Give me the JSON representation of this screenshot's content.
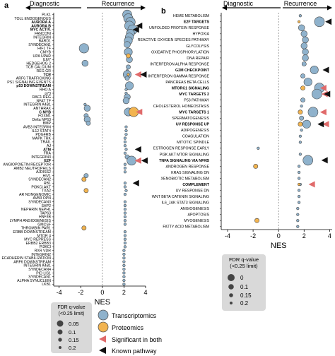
{
  "panels": {
    "a": {
      "label": "a",
      "left_header": "Diagnostic",
      "right_header": "Recurrence"
    },
    "b": {
      "label": "b",
      "left_header": "Diagnostic",
      "right_header": "Recurrence"
    }
  },
  "legend_a": {
    "title_line1": "FDR q-value",
    "title_line2": "(<0.25 limit)",
    "sizes": [
      "0.05",
      "0.1",
      "0.15",
      "0.2"
    ],
    "transcriptomics": "Transcriptomics",
    "proteomics": "Proteomics",
    "significant_both": "Significant in both",
    "known_pathway": "Known pathway"
  },
  "legend_b": {
    "title_line1": "FDR q-value",
    "title_line2": "(<0.25 limit)",
    "sizes": [
      "0",
      "0.1",
      "0.15",
      "0.2"
    ]
  },
  "colors": {
    "transcriptomics": "#8fb2cc",
    "proteomics": "#f2b450",
    "significant_both": "#e06a6a",
    "known_pathway": "#111111",
    "axis": "#000000",
    "legend_box": "#d9d9d9"
  },
  "chart_data": [
    {
      "type": "scatter",
      "panel": "a",
      "xlabel": "NES",
      "xlim": [
        -4.5,
        4
      ],
      "xticks": [
        -4,
        -2,
        0,
        2,
        4
      ],
      "grid": false,
      "categories": [
        "PLK1",
        "TOLL ENDOGENOUS",
        "AURORA A",
        "AURORA B",
        "MYC ACTIV.",
        "FANCONI",
        "INTEGRIN",
        "BARD1",
        "SYNDECAN1",
        "HIF1 TF",
        "CMYB",
        "UPA UPAR",
        "IL6/7",
        "HEDGEHOG 2",
        "TCR CALCIUM",
        "REG GR",
        "TCR",
        "ARF6 TRAFFICKING",
        "PS1 SIGNALING EVENTS",
        "p53 DOWNSTREAM",
        "RHO A",
        "p73",
        "RAC1 REG",
        "NFAT TF",
        "INTEGRIN A4B1",
        "ANTHRAX",
        "C MYB",
        "FOXM1",
        "Delta NP63",
        "BMP",
        "AVB3 INTEGRIN",
        "IL12 STAT4",
        "PDGFRB",
        "MAPK TRK",
        "TRAIL",
        "AJ",
        "ATM",
        "FRA",
        "INTEGRIN3",
        "E2F",
        "ANGIOPOIETIN RECEPTOR",
        "AMB2 NEUTROPHILS",
        "AJDISS2",
        "HIV1",
        "SYNDECAN2",
        "RB1",
        "PI3KCI AKT",
        "TXA2",
        "AR NONGENOMIC",
        "AVB3 OPN",
        "SYNDECAN3",
        "SHP2",
        "NEPHRIN NEPH1",
        "TAP63",
        "HNF3B",
        "LYMPH ANGIOGENESIS",
        "GMCSF",
        "THROMBIN PAR1",
        "ERBB DOWNSTREAM",
        "MTOR 4",
        "MYC REPRESS",
        "ERBB2 ERBB3",
        "PI3KCI",
        "RXR VDR",
        "INTEGRIN2",
        "ECADHERIN STABILIZATION",
        "ARF6 DOWNSTREAM",
        "INTEGRIN A4B1",
        "SYNDECAN4",
        "PID LIS1",
        "SYNDECAN1",
        "ALPHA SYNUCLEIN",
        "LKB1"
      ],
      "bold": [
        "AURORA A",
        "AURORA B",
        "MYC ACTIV.",
        "TCR",
        "p53 DOWNSTREAM",
        "C MYB",
        "ATM",
        "E2F"
      ],
      "series": [
        {
          "name": "Transcriptomics",
          "points": [
            {
              "c": 0,
              "x": 2.3,
              "q": 0.02
            },
            {
              "c": 1,
              "x": 2.4,
              "q": 0.02
            },
            {
              "c": 2,
              "x": 2.6,
              "q": 0.01
            },
            {
              "c": 3,
              "x": 2.5,
              "q": 0.01
            },
            {
              "c": 4,
              "x": 2.8,
              "q": 0.01
            },
            {
              "c": 5,
              "x": 2.6,
              "q": 0.05
            },
            {
              "c": 6,
              "x": 2.5,
              "q": 0.05
            },
            {
              "c": 7,
              "x": 2.4,
              "q": 0.05
            },
            {
              "c": 8,
              "x": 2.3,
              "q": 0.1
            },
            {
              "c": 9,
              "x": -1.7,
              "q": 0.01
            },
            {
              "c": 10,
              "x": 2.4,
              "q": 0.05
            },
            {
              "c": 12,
              "x": 2.5,
              "q": 0.1
            },
            {
              "c": 13,
              "x": -1.6,
              "q": 0.1
            },
            {
              "c": 14,
              "x": 2.4,
              "q": 0.15
            },
            {
              "c": 15,
              "x": 2.3,
              "q": 0.2
            },
            {
              "c": 16,
              "x": 2.3,
              "q": 0.05
            },
            {
              "c": 17,
              "x": 2.3,
              "q": 0.15
            },
            {
              "c": 19,
              "x": 2.5,
              "q": 0.05
            },
            {
              "c": 20,
              "x": 2.2,
              "q": 0.2
            },
            {
              "c": 21,
              "x": 2.2,
              "q": 0.2
            },
            {
              "c": 22,
              "x": 2.3,
              "q": 0.1
            },
            {
              "c": 23,
              "x": 2.2,
              "q": 0.1
            },
            {
              "c": 24,
              "x": -1.6,
              "q": 0.2
            },
            {
              "c": 25,
              "x": -1.4,
              "q": 0.1
            },
            {
              "c": 26,
              "x": 2.4,
              "q": 0.05
            },
            {
              "c": 27,
              "x": -1.5,
              "q": 0.15
            },
            {
              "c": 28,
              "x": -1.4,
              "q": 0.1
            },
            {
              "c": 29,
              "x": -1.3,
              "q": 0.15
            },
            {
              "c": 30,
              "x": 2.2,
              "q": 0.2
            },
            {
              "c": 31,
              "x": 2.2,
              "q": 0.2
            },
            {
              "c": 32,
              "x": 2.2,
              "q": 0.2
            },
            {
              "c": 33,
              "x": 2.1,
              "q": 0.2
            },
            {
              "c": 34,
              "x": 2.1,
              "q": 0.2
            },
            {
              "c": 35,
              "x": 2.1,
              "q": 0.2
            },
            {
              "c": 36,
              "x": 2.2,
              "q": 0.2
            },
            {
              "c": 37,
              "x": 2.1,
              "q": 0.2
            },
            {
              "c": 38,
              "x": 2.3,
              "q": 0.15
            },
            {
              "c": 39,
              "x": 2.7,
              "q": 0.02
            },
            {
              "c": 40,
              "x": 2.1,
              "q": 0.2
            },
            {
              "c": 41,
              "x": 2.1,
              "q": 0.2
            },
            {
              "c": 42,
              "x": 2.1,
              "q": 0.2
            },
            {
              "c": 43,
              "x": -1.5,
              "q": 0.15
            },
            {
              "c": 45,
              "x": 2.1,
              "q": 0.2
            },
            {
              "c": 46,
              "x": 2.1,
              "q": 0.2
            },
            {
              "c": 47,
              "x": 2.2,
              "q": 0.2
            },
            {
              "c": 48,
              "x": 2.1,
              "q": 0.2
            },
            {
              "c": 50,
              "x": 2.1,
              "q": 0.2
            },
            {
              "c": 51,
              "x": 2.1,
              "q": 0.2
            },
            {
              "c": 52,
              "x": 2.1,
              "q": 0.2
            },
            {
              "c": 53,
              "x": 2.1,
              "q": 0.2
            },
            {
              "c": 54,
              "x": 2.1,
              "q": 0.2
            },
            {
              "c": 55,
              "x": 2.1,
              "q": 0.2
            },
            {
              "c": 56,
              "x": 2.1,
              "q": 0.2
            },
            {
              "c": 58,
              "x": 2.1,
              "q": 0.2
            },
            {
              "c": 59,
              "x": 2.1,
              "q": 0.2
            },
            {
              "c": 60,
              "x": 2.1,
              "q": 0.2
            },
            {
              "c": 61,
              "x": 2.1,
              "q": 0.2
            },
            {
              "c": 62,
              "x": 2.1,
              "q": 0.2
            },
            {
              "c": 63,
              "x": 2.0,
              "q": 0.2
            },
            {
              "c": 64,
              "x": 2.0,
              "q": 0.2
            },
            {
              "c": 65,
              "x": 2.0,
              "q": 0.2
            },
            {
              "c": 66,
              "x": 2.0,
              "q": 0.2
            },
            {
              "c": 67,
              "x": 2.0,
              "q": 0.2
            },
            {
              "c": 68,
              "x": 2.0,
              "q": 0.2
            },
            {
              "c": 69,
              "x": 2.0,
              "q": 0.2
            },
            {
              "c": 70,
              "x": 2.0,
              "q": 0.2
            },
            {
              "c": 71,
              "x": 2.0,
              "q": 0.2
            },
            {
              "c": 72,
              "x": 2.0,
              "q": 0.2
            }
          ]
        },
        {
          "name": "Proteomics",
          "points": [
            {
              "c": 11,
              "x": 2.4,
              "q": 0.15
            },
            {
              "c": 16,
              "x": 2.4,
              "q": 0.2
            },
            {
              "c": 26,
              "x": 2.9,
              "q": 0.01
            },
            {
              "c": 44,
              "x": -1.7,
              "q": 0.15
            },
            {
              "c": 47,
              "x": -1.5,
              "q": 0.15
            },
            {
              "c": 57,
              "x": -1.7,
              "q": 0.15
            }
          ]
        },
        {
          "name": "Significant in both",
          "points": [
            {
              "c": 16,
              "x": 3.3
            },
            {
              "c": 26,
              "x": 3.4
            },
            {
              "c": 39,
              "x": 3.3
            }
          ]
        },
        {
          "name": "Known pathway",
          "points": [
            {
              "c": 3,
              "x": 3.4
            },
            {
              "c": 4,
              "x": 3.1
            },
            {
              "c": 16,
              "x": 3.8
            },
            {
              "c": 36,
              "x": 3.3
            },
            {
              "c": 39,
              "x": 3.9
            },
            {
              "c": 45,
              "x": 3.1
            }
          ]
        }
      ]
    },
    {
      "type": "scatter",
      "panel": "b",
      "xlabel": "NES",
      "xlim": [
        -4.5,
        4.2
      ],
      "xticks": [
        -4,
        -2,
        0,
        2,
        4
      ],
      "grid": false,
      "categories": [
        "HEME METABOLISM",
        "E2F TARGETS",
        "UNFOLDED PROTEIN RESPONSE",
        "HYPOXIA",
        "REACTIVE OXYGEN SPECIES PATHWAY",
        "GLYCOLYSIS",
        "OXIDATIVE PHOSPHORYLATION",
        "DNA REPAIR",
        "INTERFERON ALPHA RESPONSE",
        "G2M CHECKPOINT",
        "INTERFERON GAMMA RESPONSE",
        "PANCREAS BETA CELLS",
        "MTORC1 SIGNALING",
        "MYC TARGETS 2",
        "P53 PATHWAY",
        "CHOLESTEROL HOMEOSTASIS",
        "MYC TARGETS 1",
        "SPERMATOGENESIS",
        "UV RESPONSE UP",
        "ADIPOGENESIS",
        "COAGULATION",
        "MITOTIC SPINDLE",
        "ESTROGEN RESPONSE EARLY",
        "PI3K AKT MTOR SIGNALING",
        "TNFA SIGNALING VIA NFKB",
        "ANDROGEN RESPONSE",
        "KRAS SIGNALING DN",
        "XENOBIOTIC METABOLISM",
        "COMPLEMENT",
        "UV RESPONSE DN",
        "WNT BETA CATENIN SIGNALING",
        "IL6_JAK STAT3 SIGNALING",
        "ANGIOGENESIS",
        "APOPTOSIS",
        "MYOGENESIS",
        "FATTY ACID METABOLISM"
      ],
      "bold": [
        "E2F TARGETS",
        "G2M CHECKPOINT",
        "MTORC1 SIGNALING",
        "MYC TARGETS 2",
        "MYC TARGETS 1",
        "UV RESPONSE UP",
        "TNFA SIGNALING VIA NFKB",
        "COMPLEMENT"
      ],
      "series": [
        {
          "name": "Transcriptomics",
          "points": [
            {
              "c": 0,
              "x": 1.7,
              "q": 0.2
            },
            {
              "c": 1,
              "x": 3.2,
              "q": 0.0
            },
            {
              "c": 2,
              "x": 1.8,
              "q": 0.1
            },
            {
              "c": 3,
              "x": 2.0,
              "q": 0.1
            },
            {
              "c": 4,
              "x": 2.1,
              "q": 0.1
            },
            {
              "c": 5,
              "x": 2.0,
              "q": 0.1
            },
            {
              "c": 6,
              "x": 2.1,
              "q": 0.1
            },
            {
              "c": 7,
              "x": 2.1,
              "q": 0.1
            },
            {
              "c": 8,
              "x": 2.0,
              "q": 0.15
            },
            {
              "c": 9,
              "x": 2.8,
              "q": 0.05
            },
            {
              "c": 10,
              "x": 1.9,
              "q": 0.15
            },
            {
              "c": 11,
              "x": 2.3,
              "q": 0.05
            },
            {
              "c": 12,
              "x": 3.2,
              "q": 0.0
            },
            {
              "c": 13,
              "x": 3.0,
              "q": 0.0
            },
            {
              "c": 14,
              "x": 1.9,
              "q": 0.15
            },
            {
              "c": 15,
              "x": 1.8,
              "q": 0.2
            },
            {
              "c": 16,
              "x": 2.7,
              "q": 0.0
            },
            {
              "c": 17,
              "x": 1.8,
              "q": 0.15
            },
            {
              "c": 18,
              "x": 2.2,
              "q": 0.05
            },
            {
              "c": 19,
              "x": 1.8,
              "q": 0.2
            },
            {
              "c": 20,
              "x": 1.7,
              "q": 0.2
            },
            {
              "c": 21,
              "x": 1.7,
              "q": 0.2
            },
            {
              "c": 22,
              "x": -1.6,
              "q": 0.2
            },
            {
              "c": 23,
              "x": 1.7,
              "q": 0.2
            },
            {
              "c": 24,
              "x": 2.3,
              "q": 0.0
            },
            {
              "c": 25,
              "x": 1.6,
              "q": 0.2
            },
            {
              "c": 26,
              "x": 1.6,
              "q": 0.2
            },
            {
              "c": 27,
              "x": 1.6,
              "q": 0.2
            },
            {
              "c": 28,
              "x": 1.7,
              "q": 0.2
            },
            {
              "c": 29,
              "x": 1.6,
              "q": 0.2
            },
            {
              "c": 30,
              "x": 1.6,
              "q": 0.2
            },
            {
              "c": 31,
              "x": 1.6,
              "q": 0.2
            },
            {
              "c": 32,
              "x": 1.5,
              "q": 0.2
            },
            {
              "c": 33,
              "x": 1.5,
              "q": 0.2
            },
            {
              "c": 34,
              "x": 1.5,
              "q": 0.2
            },
            {
              "c": 35,
              "x": 1.5,
              "q": 0.2
            }
          ]
        },
        {
          "name": "Proteomics",
          "points": [
            {
              "c": 1,
              "x": 1.6,
              "q": 0.2
            },
            {
              "c": 12,
              "x": 1.9,
              "q": 0.15
            },
            {
              "c": 16,
              "x": 1.7,
              "q": 0.15
            },
            {
              "c": 18,
              "x": 1.7,
              "q": 0.15
            },
            {
              "c": 25,
              "x": -1.8,
              "q": 0.15
            },
            {
              "c": 28,
              "x": 1.6,
              "q": 0.2
            },
            {
              "c": 34,
              "x": -1.7,
              "q": 0.15
            }
          ]
        },
        {
          "name": "Significant in both",
          "points": [
            {
              "c": 12,
              "x": 3.5
            },
            {
              "c": 13,
              "x": 3.6
            },
            {
              "c": 16,
              "x": 3.5
            },
            {
              "c": 18,
              "x": 3.7
            },
            {
              "c": 28,
              "x": 2.6
            }
          ]
        },
        {
          "name": "Known pathway",
          "points": [
            {
              "c": 1,
              "x": 3.9
            },
            {
              "c": 9,
              "x": 3.7
            },
            {
              "c": 13,
              "x": 3.8
            },
            {
              "c": 18,
              "x": 3.3
            },
            {
              "c": 24,
              "x": 3.6
            }
          ]
        }
      ]
    }
  ]
}
